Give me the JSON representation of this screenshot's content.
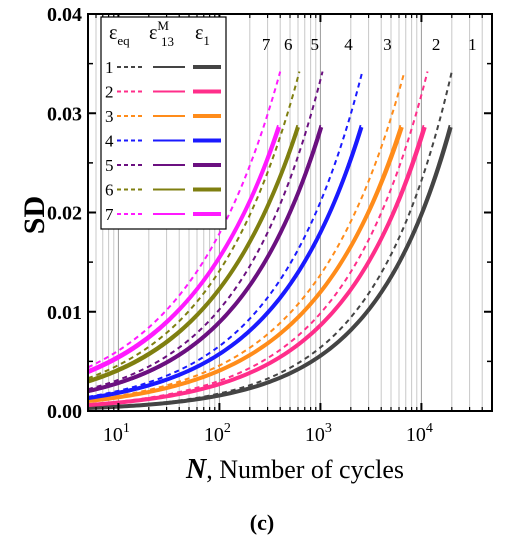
{
  "chart_data": {
    "type": "line",
    "title": "",
    "xlabel_symbol": "N",
    "xlabel_text": ", Number of cycles",
    "ylabel": "SD",
    "caption": "(c)",
    "xscale": "log",
    "xlim": [
      5,
      50000
    ],
    "ylim": [
      0,
      0.04
    ],
    "yticks": [
      "0.00",
      "0.01",
      "0.02",
      "0.03",
      "0.04"
    ],
    "ytick_values": [
      0,
      0.01,
      0.02,
      0.03,
      0.04
    ],
    "xticks": [
      {
        "base": "10",
        "exp": "1",
        "value": 10
      },
      {
        "base": "10",
        "exp": "2",
        "value": 100
      },
      {
        "base": "10",
        "exp": "3",
        "value": 1000
      },
      {
        "base": "10",
        "exp": "4",
        "value": 10000
      }
    ],
    "grid": true,
    "legend": {
      "placement": "top-left",
      "headers": [
        {
          "main": "ε",
          "sub": "eq",
          "sup": ""
        },
        {
          "main": "ε",
          "sub": "13",
          "sup": "M"
        },
        {
          "main": "ε",
          "sub": "1",
          "sup": ""
        }
      ],
      "rows": [
        "1",
        "2",
        "3",
        "4",
        "5",
        "6",
        "7"
      ]
    },
    "curve_labels": [
      "7",
      "6",
      "5",
      "4",
      "3",
      "2",
      "1"
    ],
    "series": [
      {
        "id": "1",
        "color": "#444444",
        "s0": 0.0003,
        "eq_end": [
          20000,
          0.0342
        ],
        "m_end": [
          19000,
          0.0288
        ],
        "e1_end": [
          19500,
          0.0286
        ],
        "label_x": 32000
      },
      {
        "id": "2",
        "color": "#ff2e8a",
        "s0": 0.0006,
        "eq_end": [
          11500,
          0.0342
        ],
        "m_end": [
          10500,
          0.0288
        ],
        "e1_end": [
          10800,
          0.0286
        ],
        "label_x": 14000
      },
      {
        "id": "3",
        "color": "#ff8c1a",
        "s0": 0.001,
        "eq_end": [
          6800,
          0.0342
        ],
        "m_end": [
          6200,
          0.0288
        ],
        "e1_end": [
          6400,
          0.0286
        ],
        "label_x": 4600
      },
      {
        "id": "4",
        "color": "#1a1aff",
        "s0": 0.0013,
        "eq_end": [
          2600,
          0.0342
        ],
        "m_end": [
          2500,
          0.0288
        ],
        "e1_end": [
          2550,
          0.0286
        ],
        "label_x": 1900
      },
      {
        "id": "5",
        "color": "#6b1080",
        "s0": 0.002,
        "eq_end": [
          1050,
          0.0342
        ],
        "m_end": [
          1000,
          0.0288
        ],
        "e1_end": [
          1020,
          0.0286
        ],
        "label_x": 880
      },
      {
        "id": "6",
        "color": "#7f7f10",
        "s0": 0.003,
        "eq_end": [
          620,
          0.0342
        ],
        "m_end": [
          590,
          0.0288
        ],
        "e1_end": [
          600,
          0.0286
        ],
        "label_x": 480
      },
      {
        "id": "7",
        "color": "#ff1aff",
        "s0": 0.004,
        "eq_end": [
          400,
          0.0342
        ],
        "m_end": [
          380,
          0.0288
        ],
        "e1_end": [
          390,
          0.0286
        ],
        "label_x": 290
      }
    ]
  }
}
